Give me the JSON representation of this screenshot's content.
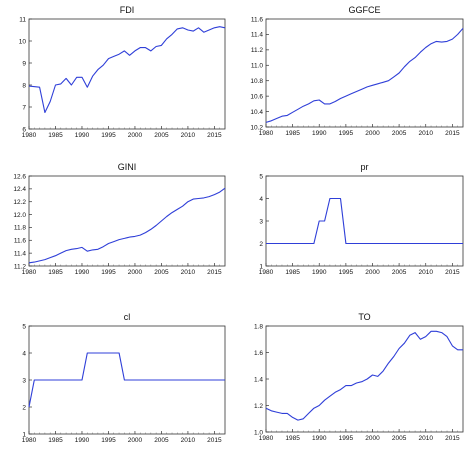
{
  "line_color": "#2f3fd8",
  "chart_data": [
    {
      "type": "line",
      "title": "FDI",
      "xlim": [
        1980,
        2017
      ],
      "ylim": [
        6,
        11
      ],
      "xticks": [
        "1980",
        "1985",
        "1990",
        "1995",
        "2000",
        "2005",
        "2010",
        "2015"
      ],
      "yticks": [
        "6",
        "7",
        "8",
        "9",
        "10",
        "11"
      ],
      "x": [
        1980,
        1982,
        1983,
        1984,
        1985,
        1986,
        1987,
        1988,
        1989,
        1990,
        1991,
        1992,
        1993,
        1994,
        1995,
        1996,
        1997,
        1998,
        1999,
        2000,
        2001,
        2002,
        2003,
        2004,
        2005,
        2006,
        2007,
        2008,
        2009,
        2010,
        2011,
        2012,
        2013,
        2014,
        2015,
        2016,
        2017
      ],
      "y": [
        7.95,
        7.9,
        6.75,
        7.25,
        8.0,
        8.05,
        8.3,
        8.0,
        8.35,
        8.35,
        7.9,
        8.4,
        8.7,
        8.9,
        9.2,
        9.3,
        9.4,
        9.55,
        9.35,
        9.55,
        9.7,
        9.7,
        9.55,
        9.75,
        9.8,
        10.1,
        10.3,
        10.55,
        10.6,
        10.5,
        10.45,
        10.6,
        10.4,
        10.5,
        10.6,
        10.65,
        10.6
      ]
    },
    {
      "type": "line",
      "title": "GGFCE",
      "xlim": [
        1980,
        2017
      ],
      "ylim": [
        10.2,
        11.6
      ],
      "xticks": [
        "1980",
        "1985",
        "1990",
        "1995",
        "2000",
        "2005",
        "2010",
        "2015"
      ],
      "yticks": [
        "10.2",
        "10.4",
        "10.6",
        "10.8",
        "11.0",
        "11.2",
        "11.4",
        "11.6"
      ],
      "x": [
        1980,
        1981,
        1982,
        1983,
        1984,
        1985,
        1986,
        1987,
        1988,
        1989,
        1990,
        1991,
        1992,
        1993,
        1994,
        1995,
        1996,
        1997,
        1998,
        1999,
        2000,
        2001,
        2002,
        2003,
        2004,
        2005,
        2006,
        2007,
        2008,
        2009,
        2010,
        2011,
        2012,
        2013,
        2014,
        2015,
        2016,
        2017
      ],
      "y": [
        10.26,
        10.28,
        10.31,
        10.34,
        10.35,
        10.39,
        10.43,
        10.47,
        10.5,
        10.54,
        10.55,
        10.5,
        10.5,
        10.53,
        10.57,
        10.6,
        10.63,
        10.66,
        10.69,
        10.72,
        10.74,
        10.76,
        10.78,
        10.8,
        10.85,
        10.9,
        10.98,
        11.05,
        11.1,
        11.17,
        11.23,
        11.28,
        11.31,
        11.3,
        11.31,
        11.34,
        11.4,
        11.48
      ]
    },
    {
      "type": "line",
      "title": "GINI",
      "xlim": [
        1980,
        2017
      ],
      "ylim": [
        11.2,
        12.6
      ],
      "xticks": [
        "1980",
        "1985",
        "1990",
        "1995",
        "2000",
        "2005",
        "2010",
        "2015"
      ],
      "yticks": [
        "11.2",
        "11.4",
        "11.6",
        "11.8",
        "12.0",
        "12.2",
        "12.4",
        "12.6"
      ],
      "x": [
        1980,
        1981,
        1982,
        1983,
        1984,
        1985,
        1986,
        1987,
        1988,
        1989,
        1990,
        1991,
        1992,
        1993,
        1994,
        1995,
        1996,
        1997,
        1998,
        1999,
        2000,
        2001,
        2002,
        2003,
        2004,
        2005,
        2006,
        2007,
        2008,
        2009,
        2010,
        2011,
        2012,
        2013,
        2014,
        2015,
        2016,
        2017
      ],
      "y": [
        11.25,
        11.26,
        11.28,
        11.3,
        11.33,
        11.36,
        11.4,
        11.44,
        11.46,
        11.47,
        11.49,
        11.43,
        11.45,
        11.46,
        11.5,
        11.55,
        11.58,
        11.61,
        11.63,
        11.65,
        11.66,
        11.68,
        11.72,
        11.77,
        11.83,
        11.9,
        11.97,
        12.03,
        12.08,
        12.13,
        12.2,
        12.24,
        12.25,
        12.26,
        12.28,
        12.31,
        12.35,
        12.41
      ]
    },
    {
      "type": "line",
      "title": "pr",
      "xlim": [
        1980,
        2017
      ],
      "ylim": [
        1,
        5
      ],
      "xticks": [
        "1980",
        "1985",
        "1990",
        "1995",
        "2000",
        "2005",
        "2010",
        "2015"
      ],
      "yticks": [
        "1",
        "2",
        "3",
        "4",
        "5"
      ],
      "x": [
        1980,
        1989,
        1990,
        1991,
        1992,
        1993,
        1994,
        1995,
        2017
      ],
      "y": [
        2,
        2,
        3,
        3,
        4,
        4,
        4,
        2,
        2
      ]
    },
    {
      "type": "line",
      "title": "cl",
      "xlim": [
        1980,
        2017
      ],
      "ylim": [
        1,
        5
      ],
      "xticks": [
        "1980",
        "1985",
        "1990",
        "1995",
        "2000",
        "2005",
        "2010",
        "2015"
      ],
      "yticks": [
        "1",
        "2",
        "3",
        "4",
        "5"
      ],
      "x": [
        1980,
        1981,
        1990,
        1991,
        1997,
        1998,
        2017
      ],
      "y": [
        2,
        3,
        3,
        4,
        4,
        3,
        3
      ]
    },
    {
      "type": "line",
      "title": "TO",
      "xlim": [
        1980,
        2017
      ],
      "ylim": [
        1.0,
        1.8
      ],
      "xticks": [
        "1980",
        "1985",
        "1990",
        "1995",
        "2000",
        "2005",
        "2010",
        "2015"
      ],
      "yticks": [
        "1.0",
        "1.2",
        "1.4",
        "1.6",
        "1.8"
      ],
      "x": [
        1980,
        1981,
        1982,
        1983,
        1984,
        1985,
        1986,
        1987,
        1988,
        1989,
        1990,
        1991,
        1992,
        1993,
        1994,
        1995,
        1996,
        1997,
        1998,
        1999,
        2000,
        2001,
        2002,
        2003,
        2004,
        2005,
        2006,
        2007,
        2008,
        2009,
        2010,
        2011,
        2012,
        2013,
        2014,
        2015,
        2016,
        2017
      ],
      "y": [
        1.18,
        1.16,
        1.15,
        1.14,
        1.14,
        1.11,
        1.09,
        1.1,
        1.14,
        1.18,
        1.2,
        1.24,
        1.27,
        1.3,
        1.32,
        1.35,
        1.35,
        1.37,
        1.38,
        1.4,
        1.43,
        1.42,
        1.46,
        1.52,
        1.57,
        1.63,
        1.67,
        1.73,
        1.75,
        1.7,
        1.72,
        1.76,
        1.76,
        1.75,
        1.72,
        1.65,
        1.62,
        1.62
      ]
    }
  ]
}
